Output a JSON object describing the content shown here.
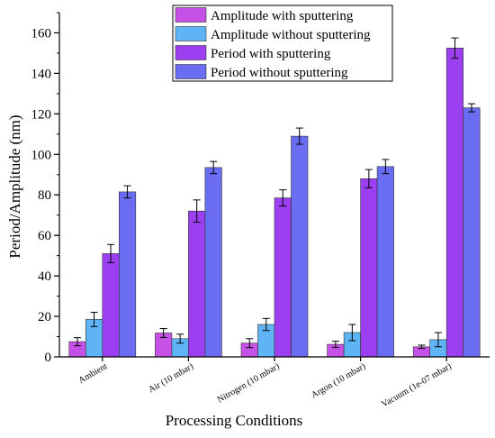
{
  "colors": {
    "background": "#ffffff",
    "axis": "#000000",
    "error_bar": "#000000",
    "amplitude_with": "#c651e6",
    "amplitude_without": "#5fb4f5",
    "period_with": "#9b3ff0",
    "period_without": "#6a6cf2"
  },
  "chart_data": {
    "type": "bar",
    "title": "",
    "xlabel": "Processing Conditions",
    "ylabel": "Period/Amplitude (nm)",
    "ylim": [
      0,
      170
    ],
    "yticks": [
      0,
      20,
      40,
      60,
      80,
      100,
      120,
      140,
      160
    ],
    "categories": [
      "Ambient",
      "Air (10 mbar)",
      "Nitrogen (10  mbar)",
      "Argon (10  mbar)",
      "Vacuum (1e-07 mbar)"
    ],
    "legend_position": "top-right",
    "grid": false,
    "series": [
      {
        "name": "Amplitude with sputtering",
        "values": [
          7.5,
          11.8,
          6.8,
          6.2,
          5.0
        ],
        "errors": [
          2.0,
          2.2,
          2.2,
          1.5,
          0.8
        ]
      },
      {
        "name": "Amplitude without sputtering",
        "values": [
          18.5,
          9.0,
          16.0,
          12.0,
          8.5
        ],
        "errors": [
          3.5,
          2.2,
          3.0,
          4.0,
          3.5
        ]
      },
      {
        "name": "Period with sputtering",
        "values": [
          51.0,
          72.0,
          78.5,
          88.0,
          152.5
        ],
        "errors": [
          4.5,
          5.5,
          4.0,
          4.5,
          5.0
        ]
      },
      {
        "name": "Period without sputtering",
        "values": [
          81.5,
          93.5,
          109.0,
          94.0,
          123.0
        ],
        "errors": [
          3.0,
          3.0,
          4.0,
          3.5,
          2.0
        ]
      }
    ]
  }
}
